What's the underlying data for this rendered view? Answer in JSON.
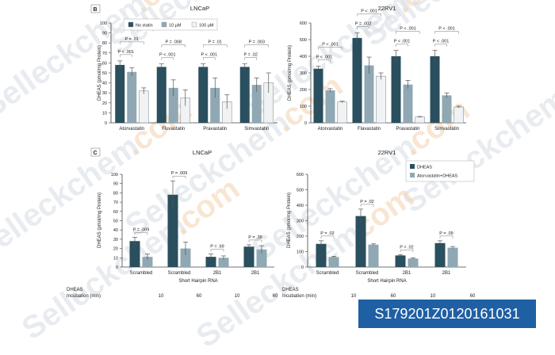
{
  "colors": {
    "dark": "#2a4f5e",
    "mid": "#8fa8b3",
    "light": "#f0f2f3",
    "axis": "#444444",
    "text": "#222222",
    "watermark": "#d6dde5",
    "watermark_accent": "#f3d3b0"
  },
  "watermark": {
    "text": "Selleckchem",
    "accent": ".com"
  },
  "caption": "S179201Z0120161031",
  "chart_data": [
    {
      "id": "B-LNCaP",
      "panel_letter": "B",
      "type": "bar",
      "title": "LNCaP",
      "ylabel": "DHEAS (pmol/mg Protein)",
      "xlabel": "",
      "ylim": [
        0,
        100
      ],
      "yticks": [
        0,
        10,
        20,
        30,
        40,
        50,
        60,
        70,
        80,
        90,
        100
      ],
      "categories": [
        "Atorvastatin",
        "Fluvastatin",
        "Pravastatin",
        "Simvastatin"
      ],
      "legend": {
        "position": "top-left"
      },
      "series": [
        {
          "name": "No statin",
          "color": "#2a4f5e",
          "values": [
            58,
            56,
            56,
            56
          ],
          "errors": [
            4,
            3,
            3,
            3
          ]
        },
        {
          "name": "10 μM",
          "color": "#8fa8b3",
          "values": [
            51,
            35,
            35,
            38
          ],
          "errors": [
            4,
            8,
            10,
            7
          ]
        },
        {
          "name": "100 μM",
          "color": "#f0f2f3",
          "values": [
            32,
            25,
            21,
            40
          ],
          "errors": [
            3,
            8,
            7,
            10
          ]
        }
      ],
      "annotations": [
        {
          "group": 0,
          "pairs": [
            "P = .01",
            "P < .001"
          ]
        },
        {
          "group": 1,
          "pairs": [
            "P = .008",
            "P < .001"
          ]
        },
        {
          "group": 2,
          "pairs": [
            "P = .01",
            "P < .001"
          ]
        },
        {
          "group": 3,
          "pairs": [
            "P = .003",
            "P = .02"
          ]
        }
      ]
    },
    {
      "id": "B-22RV1",
      "panel_letter": "",
      "type": "bar",
      "title": "22RV1",
      "ylabel": "DHEAS (pmol/mg Protein)",
      "xlabel": "",
      "ylim": [
        0,
        600
      ],
      "yticks": [
        0,
        100,
        200,
        300,
        400,
        500,
        600
      ],
      "categories": [
        "Atorvastatin",
        "Flavastatin",
        "Pravastatin",
        "Simvastatin"
      ],
      "series": [
        {
          "name": "No statin",
          "color": "#2a4f5e",
          "values": [
            325,
            510,
            400,
            400
          ],
          "errors": [
            15,
            30,
            35,
            35
          ]
        },
        {
          "name": "10 μM",
          "color": "#8fa8b3",
          "values": [
            195,
            345,
            230,
            165
          ],
          "errors": [
            10,
            50,
            25,
            15
          ]
        },
        {
          "name": "100 μM",
          "color": "#f0f2f3",
          "values": [
            125,
            280,
            35,
            95
          ],
          "errors": [
            5,
            20,
            3,
            5
          ]
        }
      ],
      "annotations": [
        {
          "group": 0,
          "pairs": [
            "P < .001",
            "P < .001"
          ]
        },
        {
          "group": 1,
          "pairs": [
            "P < .001",
            "P = .002"
          ]
        },
        {
          "group": 2,
          "pairs": [
            "P < .001",
            "P < .001"
          ]
        },
        {
          "group": 3,
          "pairs": [
            "P < .001",
            "P < .001"
          ]
        }
      ]
    },
    {
      "id": "C-LNCaP",
      "panel_letter": "C",
      "type": "bar",
      "title": "LNCaP",
      "ylabel": "DHEAS (pmol/mg Protein)",
      "xlabel": "Short Hairpin RNA",
      "ylim": [
        0,
        100
      ],
      "yticks": [
        0,
        10,
        20,
        30,
        40,
        50,
        60,
        70,
        80,
        90,
        100
      ],
      "categories": [
        "Scrambled",
        "Scrambled",
        "2B1",
        "2B1"
      ],
      "series": [
        {
          "name": "DHEAS",
          "color": "#2a4f5e",
          "values": [
            28,
            78,
            11,
            22
          ],
          "errors": [
            4,
            15,
            3,
            2
          ]
        },
        {
          "name": "Atorvastatin+DHEAS",
          "color": "#8fa8b3",
          "values": [
            11,
            20,
            10,
            19
          ],
          "errors": [
            3,
            7,
            2,
            4
          ]
        }
      ],
      "annotations": [
        "P = .009",
        "P = .009",
        "P = .69",
        "P = .39"
      ],
      "incubation": [
        "10",
        "60",
        "10",
        "60"
      ]
    },
    {
      "id": "C-22RV1",
      "panel_letter": "",
      "type": "bar",
      "title": "22RV1",
      "ylabel": "DHEAS (pmol/mg Protein)",
      "xlabel": "Short Hairpin RNA",
      "ylim": [
        0,
        600
      ],
      "yticks": [
        0,
        100,
        200,
        300,
        400,
        500,
        600
      ],
      "categories": [
        "Scrambled",
        "Scrambled",
        "2B1",
        "2B1"
      ],
      "legend": {
        "position": "top-right"
      },
      "series": [
        {
          "name": "DHEAS",
          "color": "#2a4f5e",
          "values": [
            150,
            330,
            75,
            155
          ],
          "errors": [
            20,
            45,
            5,
            15
          ]
        },
        {
          "name": "Atorvastatin+DHEAS",
          "color": "#8fa8b3",
          "values": [
            65,
            145,
            55,
            125
          ],
          "errors": [
            5,
            5,
            5,
            8
          ]
        }
      ],
      "annotations": [
        "P = .02",
        "P = .02",
        "P = .02",
        "P = .09"
      ],
      "incubation": [
        "10",
        "60",
        "10",
        "60"
      ]
    }
  ],
  "incubation_label": [
    "DHEAS",
    "Incubation (min)"
  ]
}
